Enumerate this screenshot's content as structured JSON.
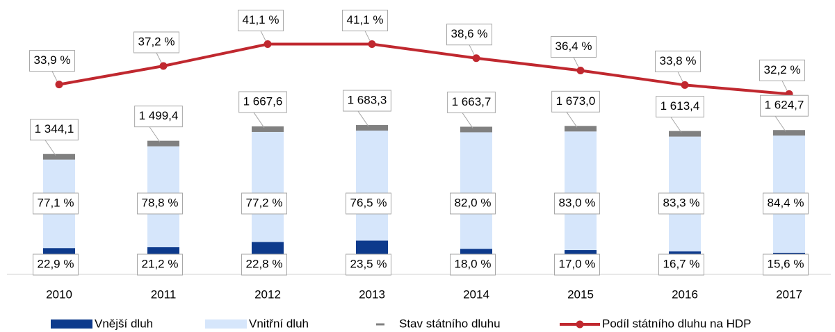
{
  "chart_data": {
    "type": "bar",
    "categories": [
      "2010",
      "2011",
      "2012",
      "2013",
      "2014",
      "2015",
      "2016",
      "2017"
    ],
    "series": [
      {
        "name": "Vnější dluh",
        "color": "#0d3a8c",
        "values": [
          22.9,
          21.2,
          22.8,
          23.5,
          18.0,
          17.0,
          16.7,
          15.6
        ],
        "value_labels": [
          "22,9 %",
          "21,2 %",
          "22,8 %",
          "23,5 %",
          "18,0 %",
          "17,0 %",
          "16,7 %",
          "15,6 %"
        ]
      },
      {
        "name": "Vnitřní dluh",
        "color": "#d6e6fb",
        "values": [
          77.1,
          78.8,
          77.2,
          76.5,
          82.0,
          83.0,
          83.3,
          84.4
        ],
        "value_labels": [
          "77,1 %",
          "78,8 %",
          "77,2 %",
          "76,5 %",
          "82,0 %",
          "83,0 %",
          "83,3 %",
          "84,4 %"
        ]
      },
      {
        "name": "Stav státního dluhu",
        "color": "#808080",
        "values": [
          1344.1,
          1499.4,
          1667.6,
          1683.3,
          1663.7,
          1673.0,
          1613.4,
          1624.7
        ],
        "value_labels": [
          "1 344,1",
          "1 499,4",
          "1 667,6",
          "1 683,3",
          "1 663,7",
          "1 673,0",
          "1 613,4",
          "1 624,7"
        ]
      },
      {
        "name": "Podíl státního dluhu na HDP",
        "color": "#c0282f",
        "axis": "y2",
        "values": [
          33.9,
          37.2,
          41.1,
          41.1,
          38.6,
          36.4,
          33.8,
          32.2
        ],
        "value_labels": [
          "33,9 %",
          "37,2 %",
          "41,1 %",
          "41,1 %",
          "38,6 %",
          "36,4 %",
          "33,8 %",
          "32,2 %"
        ]
      }
    ],
    "ylim": [
      0,
      3050
    ],
    "y2lim": [
      0,
      46.5
    ]
  }
}
